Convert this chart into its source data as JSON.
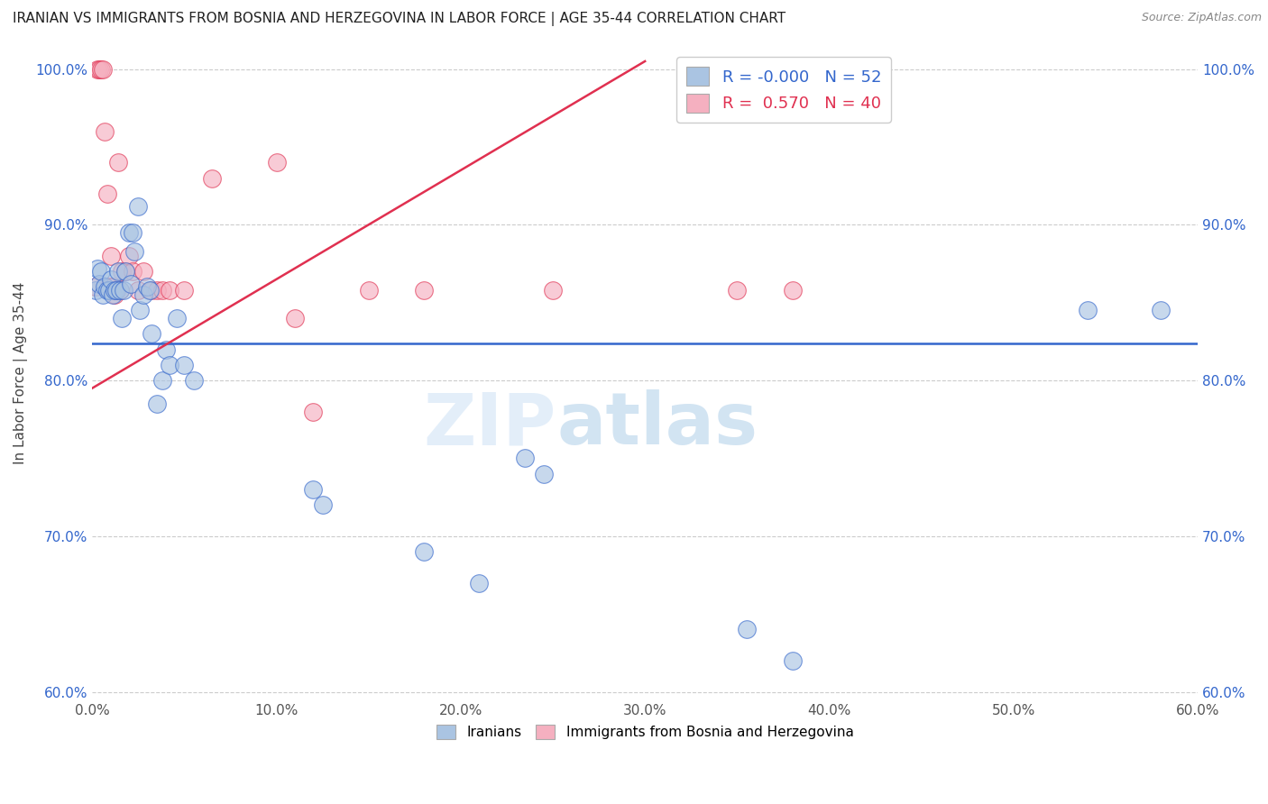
{
  "title": "IRANIAN VS IMMIGRANTS FROM BOSNIA AND HERZEGOVINA IN LABOR FORCE | AGE 35-44 CORRELATION CHART",
  "source": "Source: ZipAtlas.com",
  "ylabel": "In Labor Force | Age 35-44",
  "legend_blue_R": "-0.000",
  "legend_blue_N": "52",
  "legend_pink_R": " 0.570",
  "legend_pink_N": "40",
  "blue_color": "#aac4e2",
  "pink_color": "#f5b0c0",
  "blue_line_color": "#3366cc",
  "pink_line_color": "#e03050",
  "watermark_zip": "ZIP",
  "watermark_atlas": "atlas",
  "blue_scatter_x": [
    0.2,
    0.3,
    0.4,
    0.5,
    0.6,
    0.7,
    0.8,
    0.9,
    1.0,
    1.1,
    1.2,
    1.3,
    1.4,
    1.5,
    1.6,
    1.7,
    1.8,
    2.0,
    2.1,
    2.2,
    2.3,
    2.5,
    2.6,
    2.8,
    3.0,
    3.1,
    3.2,
    3.5,
    3.8,
    4.0,
    4.2,
    4.6,
    5.0,
    5.5,
    12.0,
    12.5,
    18.0,
    21.0,
    23.5,
    24.5,
    35.5,
    38.0,
    54.0,
    58.0
  ],
  "blue_scatter_y": [
    0.858,
    0.872,
    0.862,
    0.87,
    0.855,
    0.86,
    0.858,
    0.858,
    0.865,
    0.855,
    0.858,
    0.858,
    0.87,
    0.858,
    0.84,
    0.858,
    0.87,
    0.895,
    0.862,
    0.895,
    0.883,
    0.912,
    0.845,
    0.855,
    0.86,
    0.858,
    0.83,
    0.785,
    0.8,
    0.82,
    0.81,
    0.84,
    0.81,
    0.8,
    0.73,
    0.72,
    0.69,
    0.67,
    0.75,
    0.74,
    0.64,
    0.62,
    0.845,
    0.845
  ],
  "pink_scatter_x": [
    0.2,
    0.3,
    0.4,
    0.5,
    0.6,
    0.7,
    0.8,
    0.9,
    1.0,
    1.1,
    1.2,
    1.3,
    1.4,
    1.5,
    1.6,
    1.8,
    2.0,
    2.2,
    2.5,
    2.8,
    3.2,
    3.5,
    3.8,
    4.2,
    5.0,
    6.5,
    10.0,
    11.0,
    12.0,
    15.0,
    18.0,
    25.0,
    35.0,
    38.0
  ],
  "pink_scatter_y": [
    0.86,
    1.0,
    1.0,
    1.0,
    1.0,
    0.96,
    0.92,
    0.86,
    0.88,
    0.86,
    0.855,
    0.858,
    0.94,
    0.858,
    0.87,
    0.87,
    0.88,
    0.87,
    0.858,
    0.87,
    0.858,
    0.858,
    0.858,
    0.858,
    0.858,
    0.93,
    0.94,
    0.84,
    0.78,
    0.858,
    0.858,
    0.858,
    0.858,
    0.858
  ],
  "blue_line_y": 0.845,
  "pink_line_x0": 0.0,
  "pink_line_y0": 0.795,
  "pink_line_x1": 30.0,
  "pink_line_y1": 1.005,
  "xlim": [
    0.0,
    60.0
  ],
  "ylim": [
    0.595,
    1.015
  ],
  "yticks": [
    0.6,
    0.7,
    0.8,
    0.9,
    1.0
  ],
  "ytick_labels": [
    "60.0%",
    "70.0%",
    "80.0%",
    "90.0%",
    "100.0%"
  ],
  "xticks": [
    0.0,
    10.0,
    20.0,
    30.0,
    40.0,
    50.0,
    60.0
  ],
  "xtick_labels": [
    "0.0%",
    "10.0%",
    "20.0%",
    "30.0%",
    "40.0%",
    "50.0%",
    "60.0%"
  ]
}
